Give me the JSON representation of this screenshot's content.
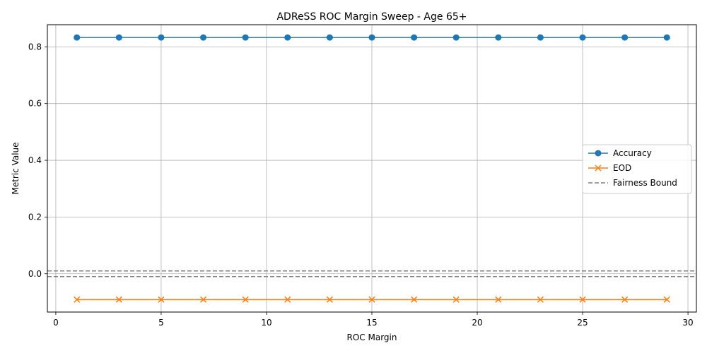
{
  "chart_data": {
    "type": "line",
    "title": "ADReSS ROC Margin Sweep - Age 65+",
    "xlabel": "ROC Margin",
    "ylabel": "Metric Value",
    "xlim": [
      -0.4,
      30.4
    ],
    "ylim": [
      -0.135,
      0.878
    ],
    "xticks": [
      0,
      5,
      10,
      15,
      20,
      25,
      30
    ],
    "yticks": [
      0.0,
      0.2,
      0.4,
      0.6,
      0.8
    ],
    "ytick_labels": [
      "0.0",
      "0.2",
      "0.4",
      "0.6",
      "0.8"
    ],
    "grid": true,
    "legend_position": "center-right",
    "x": [
      1,
      3,
      5,
      7,
      9,
      11,
      13,
      15,
      17,
      19,
      21,
      23,
      25,
      27,
      29
    ],
    "series": [
      {
        "name": "Accuracy",
        "color": "#1f77b4",
        "marker": "circle",
        "values": [
          0.833,
          0.833,
          0.833,
          0.833,
          0.833,
          0.833,
          0.833,
          0.833,
          0.833,
          0.833,
          0.833,
          0.833,
          0.833,
          0.833,
          0.833
        ]
      },
      {
        "name": "EOD",
        "color": "#ff7f0e",
        "marker": "x",
        "values": [
          -0.091,
          -0.091,
          -0.091,
          -0.091,
          -0.091,
          -0.091,
          -0.091,
          -0.091,
          -0.091,
          -0.091,
          -0.091,
          -0.091,
          -0.091,
          -0.091,
          -0.091
        ]
      }
    ],
    "reference_lines": [
      {
        "name": "Fairness Bound",
        "y": 0.01,
        "color": "#808080",
        "style": "dashed",
        "in_legend": true
      },
      {
        "name": "Fairness Bound",
        "y": -0.01,
        "color": "#808080",
        "style": "dashed",
        "in_legend": false
      }
    ]
  }
}
